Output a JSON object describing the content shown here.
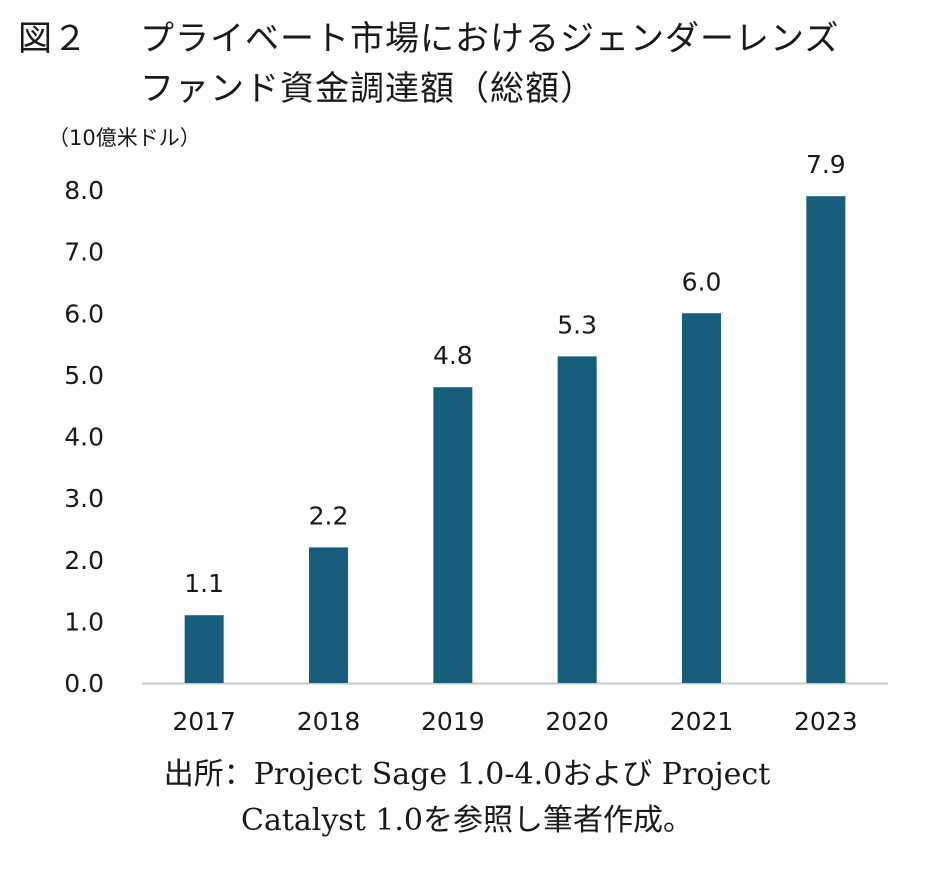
{
  "figure": {
    "label": "図２",
    "title_line1": "プライベート市場におけるジェンダーレンズ",
    "title_line2": "ファンド資金調達額（総額）",
    "unit": "（10億米ドル）",
    "source_line1": "出所：Project Sage 1.0-4.0および Project",
    "source_line2": "Catalyst 1.0を参照し筆者作成。"
  },
  "chart_data": {
    "type": "bar",
    "title": "プライベート市場におけるジェンダーレンズファンド資金調達額（総額）",
    "ylabel": "（10億米ドル）",
    "categories": [
      "2017",
      "2018",
      "2019",
      "2020",
      "2021",
      "2023"
    ],
    "values": [
      1.1,
      2.2,
      4.8,
      5.3,
      6.0,
      7.9
    ],
    "data_labels": [
      "1.1",
      "2.2",
      "4.8",
      "5.3",
      "6.0",
      "7.9"
    ],
    "ylim": [
      0,
      8
    ],
    "yticks": [
      "0.0",
      "1.0",
      "2.0",
      "3.0",
      "4.0",
      "5.0",
      "6.0",
      "7.0",
      "8.0"
    ],
    "grid": false,
    "bar_color": "#175e7c"
  }
}
